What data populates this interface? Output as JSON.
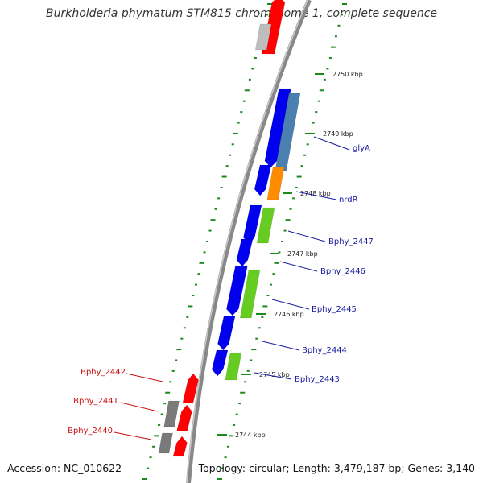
{
  "title": "Burkholderia phymatum STM815 chromosome 1, complete sequence",
  "footer": {
    "accession": "Accession: NC_010622",
    "summary": "Topology: circular; Length: 3,479,187 bp; Genes: 3,140"
  },
  "tick_labels": [
    "2750 kbp",
    "2749 kbp",
    "2748 kbp",
    "2747 kbp",
    "2746 kbp",
    "2745 kbp",
    "2744 kbp"
  ],
  "gene_labels": {
    "right": [
      "glyA",
      "nrdR",
      "Bphy_2447",
      "Bphy_2446",
      "Bphy_2445",
      "Bphy_2444",
      "Bphy_2443"
    ],
    "left": [
      "Bphy_2442",
      "Bphy_2441",
      "Bphy_2440"
    ]
  },
  "colors": {
    "backbone": "#888888",
    "cds_forward": "#ff0000",
    "cds_reverse": "#0000ee",
    "label_right": "#1a1aa0",
    "label_left": "#cc1111",
    "tick": "#1a8a1a",
    "steelblue": "#4a7fb0",
    "orange": "#ff8c00",
    "green": "#66cc22",
    "gray": "#7a7a7a",
    "lightgray": "#bdbdbd"
  }
}
